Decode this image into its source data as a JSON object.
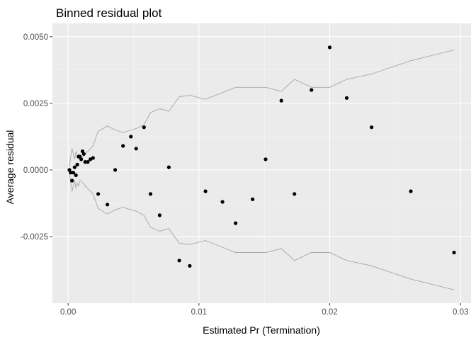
{
  "chart_data": {
    "type": "scatter",
    "title": "Binned residual plot",
    "xlabel": "Estimated  Pr (Termination)",
    "ylabel": "Average residual",
    "xlim": [
      -0.0012,
      0.0308
    ],
    "ylim": [
      -0.005,
      0.0055
    ],
    "x_ticks": [
      0.0,
      0.01,
      0.02,
      0.03
    ],
    "x_tick_labels": [
      "0.00",
      "0.01",
      "0.02",
      "0.03"
    ],
    "y_ticks": [
      -0.0025,
      0.0,
      0.0025,
      0.005
    ],
    "y_tick_labels": [
      "-0.0025",
      "0.0000",
      "0.0025",
      "0.0050"
    ],
    "grid": true,
    "colors": {
      "panel": "#ebebeb",
      "grid_major": "#ffffff",
      "points": "#000000",
      "bounds": "#a6a6a6"
    },
    "points": {
      "x": [
        0.0001,
        0.0002,
        0.0003,
        0.0004,
        0.0005,
        0.0006,
        0.0007,
        0.0008,
        0.0009,
        0.001,
        0.0011,
        0.0012,
        0.0013,
        0.0015,
        0.0017,
        0.0019,
        0.0023,
        0.003,
        0.0036,
        0.0042,
        0.0048,
        0.0052,
        0.0058,
        0.0063,
        0.007,
        0.0077,
        0.0085,
        0.0093,
        0.0105,
        0.0118,
        0.0128,
        0.0141,
        0.0151,
        0.0163,
        0.0173,
        0.0186,
        0.02,
        0.0213,
        0.0232,
        0.0262,
        0.0295
      ],
      "y": [
        0.0,
        -0.0001,
        -0.0004,
        -0.0001,
        0.0001,
        -0.0002,
        0.0002,
        0.0005,
        0.0005,
        0.0004,
        0.0007,
        0.0006,
        0.0003,
        0.0003,
        0.0004,
        0.00045,
        -0.0009,
        -0.0013,
        0.0,
        0.0009,
        0.00125,
        0.0008,
        0.0016,
        -0.0009,
        -0.0017,
        0.0001,
        -0.0034,
        -0.0036,
        -0.0008,
        -0.0012,
        -0.002,
        -0.0011,
        0.0004,
        0.0026,
        -0.0009,
        0.003,
        0.0046,
        0.0027,
        0.0016,
        -0.0008,
        -0.0031
      ]
    },
    "bounds": {
      "x": [
        0.0001,
        0.0002,
        0.0003,
        0.0004,
        0.0005,
        0.0006,
        0.0007,
        0.0008,
        0.0009,
        0.001,
        0.0011,
        0.0012,
        0.0013,
        0.0015,
        0.0017,
        0.0019,
        0.0023,
        0.003,
        0.0036,
        0.0042,
        0.0048,
        0.0052,
        0.0058,
        0.0063,
        0.007,
        0.0077,
        0.0085,
        0.0093,
        0.0105,
        0.0118,
        0.0128,
        0.0141,
        0.0151,
        0.0163,
        0.0173,
        0.0186,
        0.02,
        0.0213,
        0.0232,
        0.0262,
        0.0295
      ],
      "upper": [
        0.0001,
        0.0005,
        0.0008,
        0.0006,
        0.0004,
        0.0007,
        0.0005,
        0.0006,
        0.0004,
        0.0004,
        0.0005,
        0.0005,
        0.0006,
        0.0007,
        0.0008,
        0.0009,
        0.00145,
        0.00165,
        0.0015,
        0.0014,
        0.0015,
        0.00155,
        0.0017,
        0.00215,
        0.0023,
        0.0022,
        0.00275,
        0.0028,
        0.00265,
        0.0029,
        0.0031,
        0.0031,
        0.0031,
        0.00295,
        0.0034,
        0.0031,
        0.0031,
        0.0034,
        0.0036,
        0.0041,
        0.0045
      ],
      "lower": [
        -0.0001,
        -0.0005,
        -0.0008,
        -0.0006,
        -0.0004,
        -0.0007,
        -0.0005,
        -0.0006,
        -0.0004,
        -0.0004,
        -0.0005,
        -0.0005,
        -0.0006,
        -0.0007,
        -0.0008,
        -0.0009,
        -0.00145,
        -0.00165,
        -0.0015,
        -0.0014,
        -0.0015,
        -0.00155,
        -0.0017,
        -0.00215,
        -0.0023,
        -0.0022,
        -0.00275,
        -0.0028,
        -0.00265,
        -0.0029,
        -0.0031,
        -0.0031,
        -0.0031,
        -0.00295,
        -0.0034,
        -0.0031,
        -0.0031,
        -0.0034,
        -0.0036,
        -0.0041,
        -0.0045
      ]
    }
  }
}
